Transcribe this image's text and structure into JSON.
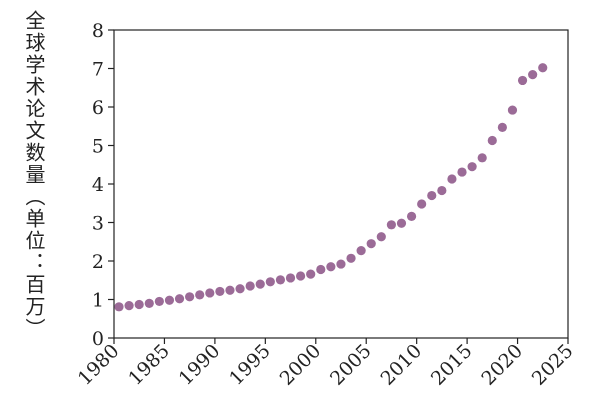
{
  "chart_data": {
    "type": "scatter",
    "ylabel": "全球学术论文数量（单位：百万）",
    "x": [
      1980,
      1981,
      1982,
      1983,
      1984,
      1985,
      1986,
      1987,
      1988,
      1989,
      1990,
      1991,
      1992,
      1993,
      1994,
      1995,
      1996,
      1997,
      1998,
      1999,
      2000,
      2001,
      2002,
      2003,
      2004,
      2005,
      2006,
      2007,
      2008,
      2009,
      2010,
      2011,
      2012,
      2013,
      2014,
      2015,
      2016,
      2017,
      2018,
      2019,
      2020,
      2021,
      2022
    ],
    "values": [
      0.81,
      0.84,
      0.87,
      0.9,
      0.95,
      0.98,
      1.02,
      1.07,
      1.12,
      1.17,
      1.21,
      1.24,
      1.28,
      1.35,
      1.4,
      1.46,
      1.51,
      1.56,
      1.61,
      1.66,
      1.78,
      1.85,
      1.92,
      2.07,
      2.27,
      2.45,
      2.63,
      2.94,
      2.98,
      3.16,
      3.48,
      3.7,
      3.83,
      4.13,
      4.31,
      4.45,
      4.68,
      5.13,
      5.47,
      5.92,
      6.69,
      6.84,
      7.02
    ],
    "color": "#9b6b97",
    "xlim": [
      1980,
      2025
    ],
    "xticks": [
      1980,
      1985,
      1990,
      1995,
      2000,
      2005,
      2010,
      2015,
      2020,
      2025
    ],
    "ylim": [
      0,
      8
    ],
    "yticks": [
      0,
      1,
      2,
      3,
      4,
      5,
      6,
      7,
      8
    ]
  }
}
